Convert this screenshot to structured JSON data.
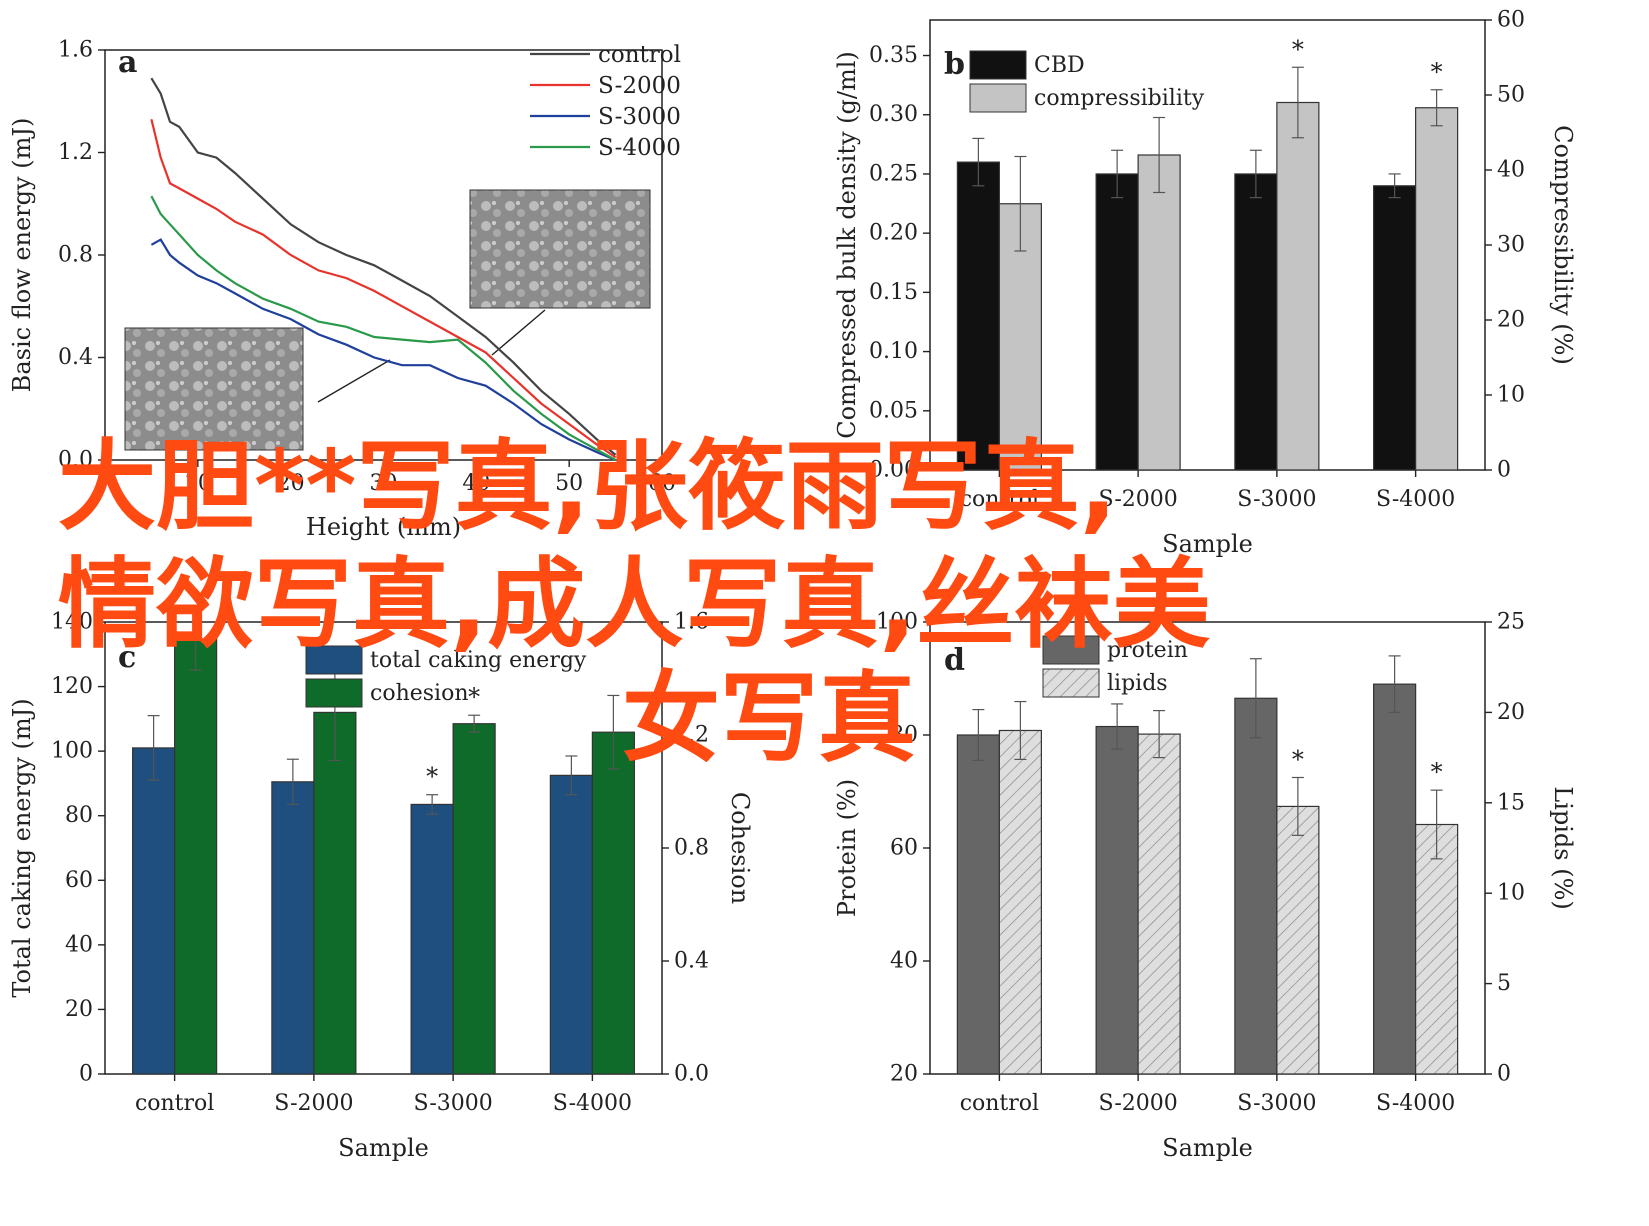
{
  "overlay": {
    "line1": "大胆**写真,张筱雨写真,",
    "line2": "情欲写真,成人写真,丝袜美",
    "line3": "女写真",
    "color": "#ff4a12"
  },
  "chart_data": [
    {
      "panel": "a",
      "type": "line",
      "xlabel": "Height (mm)",
      "ylabel": "Basic flow energy (mJ)",
      "xlim": [
        0,
        60
      ],
      "ylim": [
        0.0,
        1.6
      ],
      "x_ticks": [
        "10",
        "20",
        "30",
        "40",
        "50",
        "60"
      ],
      "y_ticks": [
        "0.0",
        "0.4",
        "0.8",
        "1.2",
        "1.6"
      ],
      "legend_position": "top-right",
      "series": [
        {
          "name": "control",
          "color": "#444444",
          "x": [
            5,
            6,
            7,
            8,
            10,
            12,
            14,
            17,
            20,
            23,
            26,
            29,
            32,
            35,
            38,
            41,
            44,
            47,
            50,
            53,
            55
          ],
          "y": [
            1.49,
            1.43,
            1.32,
            1.3,
            1.2,
            1.18,
            1.12,
            1.02,
            0.92,
            0.85,
            0.8,
            0.76,
            0.7,
            0.64,
            0.56,
            0.48,
            0.38,
            0.27,
            0.18,
            0.08,
            0.02
          ]
        },
        {
          "name": "S-2000",
          "color": "#e8332c",
          "x": [
            5,
            6,
            7,
            8,
            10,
            12,
            14,
            17,
            20,
            23,
            26,
            29,
            32,
            35,
            38,
            41,
            44,
            47,
            50,
            53,
            55
          ],
          "y": [
            1.33,
            1.18,
            1.08,
            1.06,
            1.02,
            0.98,
            0.93,
            0.88,
            0.8,
            0.74,
            0.71,
            0.66,
            0.6,
            0.54,
            0.48,
            0.42,
            0.32,
            0.22,
            0.14,
            0.06,
            0.01
          ]
        },
        {
          "name": "S-3000",
          "color": "#1f3f9c",
          "x": [
            5,
            6,
            7,
            8,
            10,
            12,
            14,
            17,
            20,
            23,
            26,
            29,
            32,
            35,
            38,
            41,
            44,
            47,
            50,
            53,
            55
          ],
          "y": [
            0.84,
            0.86,
            0.8,
            0.77,
            0.72,
            0.69,
            0.65,
            0.59,
            0.55,
            0.49,
            0.45,
            0.4,
            0.37,
            0.37,
            0.32,
            0.29,
            0.22,
            0.14,
            0.08,
            0.03,
            0.0
          ]
        },
        {
          "name": "S-4000",
          "color": "#2a9a4a",
          "x": [
            5,
            6,
            7,
            8,
            10,
            12,
            14,
            17,
            20,
            23,
            26,
            29,
            32,
            35,
            38,
            41,
            44,
            47,
            50,
            53,
            55
          ],
          "y": [
            1.03,
            0.96,
            0.92,
            0.88,
            0.8,
            0.74,
            0.69,
            0.63,
            0.59,
            0.54,
            0.52,
            0.48,
            0.47,
            0.46,
            0.47,
            0.38,
            0.27,
            0.18,
            0.1,
            0.04,
            0.0
          ]
        }
      ]
    },
    {
      "panel": "b",
      "type": "bar",
      "xlabel": "Sample",
      "ylabel": "Compressed bulk density (g/ml)",
      "ylabel_right": "Compressibility (%)",
      "categories": [
        "control",
        "S-2000",
        "S-3000",
        "S-4000"
      ],
      "ylim": [
        0.0,
        0.38
      ],
      "ylim_right": [
        0,
        60
      ],
      "y_ticks": [
        "0.00",
        "0.05",
        "0.10",
        "0.15",
        "0.20",
        "0.25",
        "0.30",
        "0.35"
      ],
      "y_ticks_right": [
        "0",
        "10",
        "20",
        "30",
        "40",
        "50",
        "60"
      ],
      "legend_position": "top-left",
      "series": [
        {
          "name": "CBD",
          "color": "#111111",
          "axis": "left",
          "values": [
            0.26,
            0.25,
            0.25,
            0.24
          ],
          "err": [
            0.02,
            0.02,
            0.02,
            0.01
          ]
        },
        {
          "name": "compressibility",
          "color": "#c4c4c4",
          "axis": "right",
          "values": [
            35.5,
            42,
            49,
            48.3
          ],
          "err": [
            6.3,
            5,
            4.7,
            2.4
          ]
        }
      ],
      "annotations": [
        {
          "category": "S-3000",
          "series": "compressibility",
          "text": "*"
        },
        {
          "category": "S-4000",
          "series": "compressibility",
          "text": "*"
        }
      ]
    },
    {
      "panel": "c",
      "type": "bar",
      "xlabel": "Sample",
      "ylabel": "Total caking energy (mJ)",
      "ylabel_right": "Cohesion",
      "categories": [
        "control",
        "S-2000",
        "S-3000",
        "S-4000"
      ],
      "ylim": [
        0,
        140
      ],
      "ylim_right": [
        0.0,
        1.6
      ],
      "y_ticks": [
        "0",
        "20",
        "40",
        "60",
        "80",
        "100",
        "120",
        "140"
      ],
      "y_ticks_right": [
        "0.0",
        "0.4",
        "0.8",
        "1.2",
        "1.6"
      ],
      "legend_position": "top-center",
      "series": [
        {
          "name": "total caking energy",
          "color": "#1e4f7f",
          "axis": "left",
          "values": [
            101,
            90.5,
            83.5,
            92.5
          ],
          "err": [
            10,
            7,
            3,
            6
          ]
        },
        {
          "name": "cohesion",
          "color": "#0f6b2a",
          "axis": "right",
          "values": [
            1.54,
            1.28,
            1.24,
            1.21
          ],
          "err": [
            0.11,
            0.17,
            0.03,
            0.13
          ]
        }
      ],
      "annotations": [
        {
          "category": "S-3000",
          "series": "total caking energy",
          "text": "*"
        },
        {
          "category": "S-3000",
          "series": "cohesion",
          "text": "*"
        }
      ]
    },
    {
      "panel": "d",
      "type": "bar",
      "xlabel": "Sample",
      "ylabel": "Protein (%)",
      "ylabel_right": "Lipids (%)",
      "categories": [
        "control",
        "S-2000",
        "S-3000",
        "S-4000"
      ],
      "ylim": [
        20,
        100
      ],
      "ylim_right": [
        0,
        25
      ],
      "y_ticks": [
        "20",
        "40",
        "60",
        "80",
        "100"
      ],
      "y_ticks_right": [
        "0",
        "5",
        "10",
        "15",
        "20",
        "25"
      ],
      "legend_position": "top-left",
      "series": [
        {
          "name": "protein",
          "color": "#666666",
          "axis": "left",
          "values": [
            80,
            81.5,
            86.5,
            89
          ],
          "err": [
            4.5,
            4,
            7,
            5
          ]
        },
        {
          "name": "lipids",
          "color": "#dddddd",
          "pattern": "hatched",
          "axis": "right",
          "values": [
            19,
            18.8,
            14.8,
            13.8
          ],
          "err": [
            1.6,
            1.3,
            1.6,
            1.9
          ]
        }
      ],
      "annotations": [
        {
          "category": "S-3000",
          "series": "lipids",
          "text": "*"
        },
        {
          "category": "S-4000",
          "series": "lipids",
          "text": "*"
        }
      ]
    }
  ]
}
